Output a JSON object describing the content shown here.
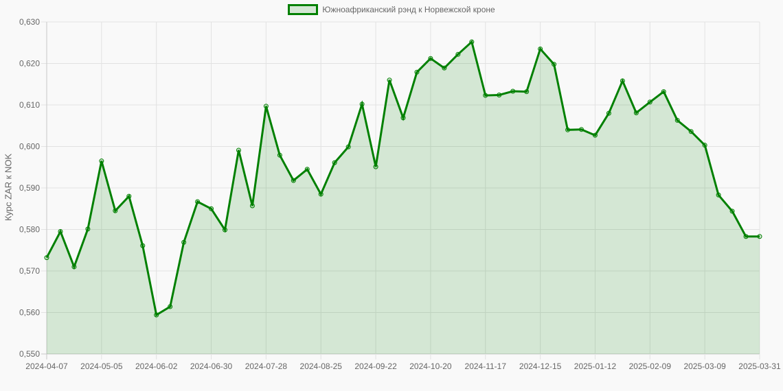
{
  "chart_data": {
    "type": "line",
    "title": "",
    "legend": {
      "position": "top",
      "entries": [
        "Южноафриканский рэнд к Норвежской кроне"
      ]
    },
    "xlabel": "",
    "ylabel": "Курс ZAR к NOK",
    "ylim": [
      0.55,
      0.63
    ],
    "y_ticks": [
      "0,550",
      "0,560",
      "0,570",
      "0,580",
      "0,590",
      "0,600",
      "0,610",
      "0,620",
      "0,630"
    ],
    "x_tick_labels": [
      "2024-04-07",
      "2024-05-05",
      "2024-06-02",
      "2024-06-30",
      "2024-07-28",
      "2024-08-25",
      "2024-09-22",
      "2024-10-20",
      "2024-11-17",
      "2024-12-15",
      "2025-01-12",
      "2025-02-09",
      "2025-03-09",
      "2025-03-31"
    ],
    "grid": true,
    "fill": true,
    "colors": {
      "line": "#008000",
      "fill": "rgba(0,128,0,0.15)",
      "grid": "#e0e0e0",
      "background": "#f9f9f9"
    },
    "categories": [
      "2024-04-07",
      "2024-04-14",
      "2024-04-21",
      "2024-04-28",
      "2024-05-05",
      "2024-05-12",
      "2024-05-19",
      "2024-05-26",
      "2024-06-02",
      "2024-06-09",
      "2024-06-16",
      "2024-06-23",
      "2024-06-30",
      "2024-07-07",
      "2024-07-14",
      "2024-07-21",
      "2024-07-28",
      "2024-08-04",
      "2024-08-11",
      "2024-08-18",
      "2024-08-25",
      "2024-09-01",
      "2024-09-08",
      "2024-09-15",
      "2024-09-22",
      "2024-09-29",
      "2024-10-06",
      "2024-10-13",
      "2024-10-20",
      "2024-10-27",
      "2024-11-03",
      "2024-11-10",
      "2024-11-17",
      "2024-11-24",
      "2024-12-01",
      "2024-12-08",
      "2024-12-15",
      "2024-12-22",
      "2024-12-29",
      "2025-01-05",
      "2025-01-12",
      "2025-01-19",
      "2025-01-26",
      "2025-02-02",
      "2025-02-09",
      "2025-02-16",
      "2025-02-23",
      "2025-03-02",
      "2025-03-09",
      "2025-03-16",
      "2025-03-23",
      "2025-03-30",
      "2025-03-31"
    ],
    "series": [
      {
        "name": "Южноафриканский рэнд к Норвежской кроне",
        "values": [
          0.5732,
          0.5795,
          0.571,
          0.5801,
          0.5965,
          0.5845,
          0.588,
          0.5761,
          0.5594,
          0.5614,
          0.5769,
          0.5867,
          0.585,
          0.5799,
          0.5991,
          0.5857,
          0.6097,
          0.5979,
          0.5918,
          0.5945,
          0.5885,
          0.5961,
          0.5999,
          0.6102,
          0.5951,
          0.616,
          0.6069,
          0.6179,
          0.6212,
          0.6189,
          0.6222,
          0.6252,
          0.6123,
          0.6124,
          0.6133,
          0.6132,
          0.6235,
          0.6198,
          0.604,
          0.6041,
          0.6027,
          0.608,
          0.6158,
          0.6081,
          0.6107,
          0.6132,
          0.6063,
          0.6036,
          0.6003,
          0.5883,
          0.5844,
          0.5783,
          0.5783
        ]
      }
    ]
  }
}
